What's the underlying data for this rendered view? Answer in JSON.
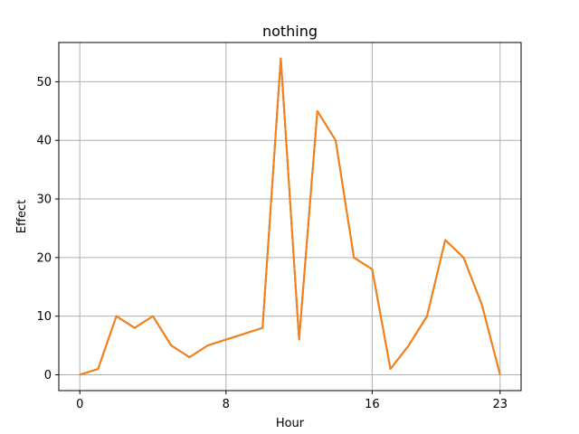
{
  "chart_data": {
    "type": "line",
    "title": "nothing",
    "xlabel": "Hour",
    "ylabel": "Effect",
    "xlim": [
      -1.15,
      24.15
    ],
    "ylim": [
      -2.7,
      56.7
    ],
    "xticks": [
      0,
      8,
      16,
      23
    ],
    "yticks": [
      0,
      10,
      20,
      30,
      40,
      50
    ],
    "grid": true,
    "x": [
      0,
      1,
      2,
      3,
      4,
      5,
      6,
      7,
      8,
      9,
      10,
      11,
      12,
      13,
      14,
      15,
      16,
      17,
      18,
      19,
      20,
      21,
      22,
      23
    ],
    "series": [
      {
        "color": "#1f77b4",
        "values": [
          0,
          1,
          10,
          8,
          10,
          5,
          3,
          5,
          6,
          7,
          8,
          54,
          6,
          45,
          40,
          20,
          18,
          1,
          5,
          10,
          23,
          20,
          12,
          0
        ]
      },
      {
        "color": "#ff7f0e",
        "values": [
          0,
          1,
          10,
          8,
          10,
          5,
          3,
          5,
          6,
          7,
          8,
          54,
          6,
          45,
          40,
          20,
          18,
          1,
          5,
          10,
          23,
          20,
          12,
          0
        ]
      }
    ]
  }
}
